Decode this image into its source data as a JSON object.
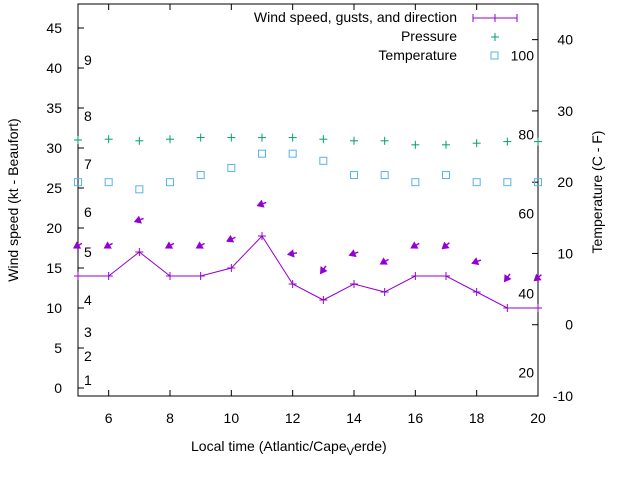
{
  "chart_data": {
    "type": "line",
    "xlabel": "Local time (Atlantic/Cape",
    "xlabel_sub": "V",
    "xlabel_tail": "erde)",
    "ylabel": "Wind speed (kt - Beaufort)",
    "y2label": "Temperature (C - F)",
    "xlim": [
      5,
      20
    ],
    "ylim": [
      -1,
      48
    ],
    "y2lim": [
      -10,
      45
    ],
    "xticks": [
      "6",
      "8",
      "10",
      "12",
      "14",
      "16",
      "18",
      "20"
    ],
    "yticks": [
      "0",
      "5",
      "10",
      "15",
      "20",
      "25",
      "30",
      "35",
      "40",
      "45"
    ],
    "y2ticks": [
      "-10",
      "0",
      "10",
      "20",
      "30",
      "40"
    ],
    "beaufort": [
      {
        "label": "1",
        "kt": 1
      },
      {
        "label": "2",
        "kt": 4
      },
      {
        "label": "3",
        "kt": 7
      },
      {
        "label": "4",
        "kt": 11
      },
      {
        "label": "5",
        "kt": 17
      },
      {
        "label": "6",
        "kt": 22
      },
      {
        "label": "7",
        "kt": 28
      },
      {
        "label": "8",
        "kt": 34
      },
      {
        "label": "9",
        "kt": 41
      }
    ],
    "fahrenheit": [
      {
        "label": "20",
        "c": -6.7
      },
      {
        "label": "40",
        "c": 4.4
      },
      {
        "label": "60",
        "c": 15.6
      },
      {
        "label": "80",
        "c": 26.7
      },
      {
        "label": "100",
        "c": 37.8
      }
    ],
    "legend": {
      "wind": "Wind speed, gusts, and direction",
      "pressure": "Pressure",
      "temperature": "Temperature"
    },
    "series": {
      "wind": {
        "x": [
          5,
          6,
          7,
          8,
          9,
          10,
          11,
          12,
          13,
          14,
          15,
          16,
          17,
          18,
          19,
          20
        ],
        "values": [
          14,
          14,
          17,
          14,
          14,
          15,
          19,
          13,
          11,
          13,
          12,
          14,
          14,
          12,
          10,
          10
        ]
      },
      "gusts": {
        "x": [
          5,
          6,
          7,
          8,
          9,
          10,
          11,
          12,
          13,
          14,
          15,
          16,
          17,
          18,
          19,
          20
        ],
        "values": [
          17.8,
          17.8,
          21,
          17.8,
          17.8,
          18.6,
          23,
          16.8,
          14.8,
          16.8,
          15.8,
          17.8,
          17.8,
          15.8,
          13.8,
          13.8
        ],
        "direction_deg": [
          60,
          60,
          70,
          60,
          60,
          65,
          70,
          80,
          35,
          70,
          60,
          60,
          50,
          70,
          35,
          50
        ]
      },
      "pressure": {
        "x": [
          5,
          6,
          7,
          8,
          9,
          10,
          11,
          12,
          13,
          14,
          15,
          16,
          17,
          18,
          19,
          20
        ],
        "values": [
          31,
          31.1,
          30.9,
          31.1,
          31.3,
          31.3,
          31.3,
          31.3,
          31.1,
          30.9,
          30.9,
          30.4,
          30.4,
          30.6,
          30.8,
          30.8
        ]
      },
      "temperature": {
        "x": [
          5,
          6,
          7,
          8,
          9,
          10,
          11,
          12,
          13,
          14,
          15,
          16,
          17,
          18,
          19,
          20
        ],
        "values": [
          20,
          20,
          19,
          20,
          21,
          22,
          24,
          24,
          23,
          21,
          21,
          20,
          21,
          20,
          20,
          20
        ]
      }
    },
    "colors": {
      "wind": "#9400d3",
      "pressure": "#009e73",
      "temperature": "#56b4e9"
    }
  }
}
